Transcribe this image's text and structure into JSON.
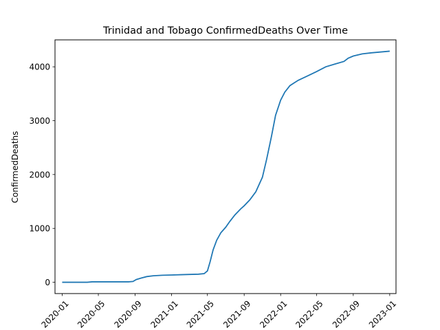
{
  "chart_data": {
    "type": "line",
    "title": "Trinidad and Tobago  ConfirmedDeaths Over Time",
    "xlabel": "",
    "ylabel": "ConfirmedDeaths",
    "ylim": [
      -210,
      4500
    ],
    "xlim": [
      "2019-12-08",
      "2023-01-22"
    ],
    "grid": false,
    "legend": "none",
    "line_color": "#1f77b4",
    "yticks": [
      0,
      1000,
      2000,
      3000,
      4000
    ],
    "ytick_labels": [
      "0",
      "1000",
      "2000",
      "3000",
      "4000"
    ],
    "xticks": [
      "2020-01-01",
      "2020-05-01",
      "2020-09-01",
      "2021-01-01",
      "2021-05-01",
      "2021-09-01",
      "2022-01-01",
      "2022-05-01",
      "2022-09-01",
      "2023-01-01"
    ],
    "xtick_labels": [
      "2020-01",
      "2020-05",
      "2020-09",
      "2021-01",
      "2021-05",
      "2021-09",
      "2022-01",
      "2022-05",
      "2022-09",
      "2023-01"
    ],
    "series": [
      {
        "x": [
          "2020-01-01",
          "2020-03-25",
          "2020-04-10",
          "2020-08-10",
          "2020-08-25",
          "2020-09-05",
          "2020-09-20",
          "2020-10-10",
          "2020-11-01",
          "2020-12-01",
          "2021-01-01",
          "2021-02-01",
          "2021-03-01",
          "2021-04-01",
          "2021-04-20",
          "2021-05-01",
          "2021-05-10",
          "2021-05-20",
          "2021-06-01",
          "2021-06-15",
          "2021-07-01",
          "2021-07-15",
          "2021-08-01",
          "2021-08-20",
          "2021-09-01",
          "2021-09-20",
          "2021-10-10",
          "2021-11-01",
          "2021-11-15",
          "2021-12-01",
          "2021-12-15",
          "2022-01-01",
          "2022-01-15",
          "2022-02-01",
          "2022-02-15",
          "2022-03-01",
          "2022-04-01",
          "2022-05-01",
          "2022-06-01",
          "2022-07-01",
          "2022-08-01",
          "2022-08-15",
          "2022-09-01",
          "2022-10-01",
          "2022-11-01",
          "2023-01-01"
        ],
        "y": [
          0,
          0,
          8,
          8,
          15,
          50,
          75,
          105,
          120,
          130,
          135,
          140,
          145,
          150,
          160,
          210,
          380,
          600,
          780,
          920,
          1020,
          1130,
          1250,
          1360,
          1420,
          1530,
          1680,
          1950,
          2280,
          2700,
          3100,
          3380,
          3530,
          3650,
          3700,
          3750,
          3830,
          3910,
          4000,
          4050,
          4100,
          4160,
          4200,
          4240,
          4260,
          4290
        ]
      }
    ]
  }
}
